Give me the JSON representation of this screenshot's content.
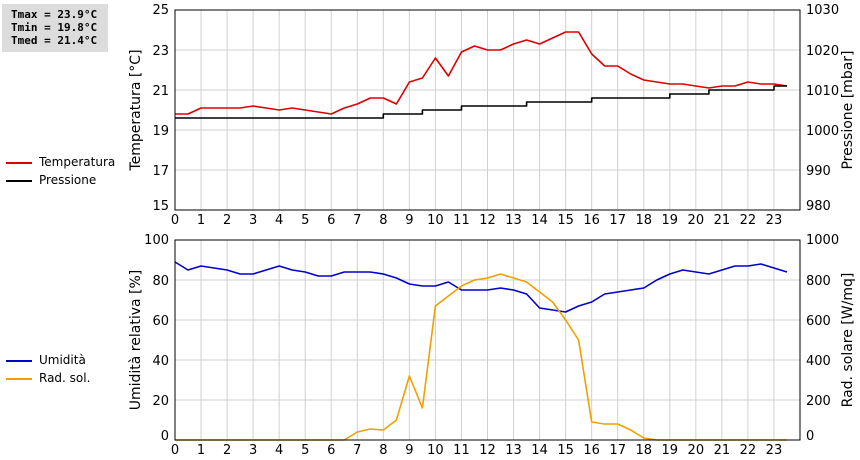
{
  "stats": {
    "tmax": "Tmax = 23.9°C",
    "tmin": "Tmin = 19.8°C",
    "tmed": "Tmed = 21.4°C"
  },
  "legend_top": [
    {
      "label": "Temperatura",
      "color": "#dd0000"
    },
    {
      "label": "Pressione",
      "color": "#000000"
    }
  ],
  "legend_bottom": [
    {
      "label": "Umidità",
      "color": "#0000cc"
    },
    {
      "label": "Rad. sol.",
      "color": "#f0a000"
    }
  ],
  "chart_data": [
    {
      "type": "line",
      "xlim": [
        0,
        24
      ],
      "xticks": [
        "0",
        "1",
        "2",
        "3",
        "4",
        "5",
        "6",
        "7",
        "8",
        "9",
        "10",
        "11",
        "12",
        "13",
        "14",
        "15",
        "16",
        "17",
        "18",
        "19",
        "20",
        "21",
        "22",
        "23"
      ],
      "ylabel": "Temperatura [°C]",
      "ylim": [
        15,
        25
      ],
      "yticks": [
        "15",
        "17",
        "19",
        "21",
        "23",
        "25"
      ],
      "y2label": "Pressione [mbar]",
      "y2lim": [
        980,
        1030
      ],
      "y2ticks": [
        "980",
        "990",
        "1000",
        "1010",
        "1020",
        "1030"
      ],
      "grid": true,
      "series": [
        {
          "name": "Temperatura",
          "axis": "left",
          "color": "#dd0000",
          "x": [
            0,
            0.5,
            1,
            1.5,
            2,
            2.5,
            3,
            3.5,
            4,
            4.5,
            5,
            5.5,
            6,
            6.5,
            7,
            7.5,
            8,
            8.5,
            9,
            9.5,
            10,
            10.5,
            11,
            11.5,
            12,
            12.5,
            13,
            13.5,
            14,
            14.5,
            15,
            15.5,
            16,
            16.5,
            17,
            17.5,
            18,
            18.5,
            19,
            19.5,
            20,
            20.5,
            21,
            21.5,
            22,
            22.5,
            23,
            23.5
          ],
          "values": [
            19.8,
            19.8,
            20.1,
            20.1,
            20.1,
            20.1,
            20.2,
            20.1,
            20.0,
            20.1,
            20.0,
            19.9,
            19.8,
            20.1,
            20.3,
            20.6,
            20.6,
            20.3,
            21.4,
            21.6,
            22.6,
            21.7,
            22.9,
            23.2,
            23.0,
            23.0,
            23.3,
            23.5,
            23.3,
            23.6,
            23.9,
            23.9,
            22.8,
            22.2,
            22.2,
            21.8,
            21.5,
            21.4,
            21.3,
            21.3,
            21.2,
            21.1,
            21.2,
            21.2,
            21.4,
            21.3,
            21.3,
            21.2
          ]
        },
        {
          "name": "Pressione",
          "axis": "right",
          "color": "#000000",
          "x": [
            0,
            0.5,
            1,
            1.5,
            2,
            2.5,
            3,
            3.5,
            4,
            4.5,
            5,
            5.5,
            6,
            6.5,
            7,
            7.5,
            8,
            8.5,
            9,
            9.5,
            10,
            10.5,
            11,
            11.5,
            12,
            12.5,
            13,
            13.5,
            14,
            14.5,
            15,
            15.5,
            16,
            16.5,
            17,
            17.5,
            18,
            18.5,
            19,
            19.5,
            20,
            20.5,
            21,
            21.5,
            22,
            22.5,
            23,
            23.5
          ],
          "values": [
            1003,
            1003,
            1003,
            1003,
            1003,
            1003,
            1003,
            1003,
            1003,
            1003,
            1003,
            1003,
            1003,
            1003,
            1003,
            1003,
            1004,
            1004,
            1004,
            1005,
            1005,
            1005,
            1006,
            1006,
            1006,
            1006,
            1006,
            1007,
            1007,
            1007,
            1007,
            1007,
            1008,
            1008,
            1008,
            1008,
            1008,
            1008,
            1009,
            1009,
            1009,
            1010,
            1010,
            1010,
            1010,
            1010,
            1011,
            1011
          ]
        }
      ]
    },
    {
      "type": "line",
      "xlim": [
        0,
        24
      ],
      "xticks": [
        "0",
        "1",
        "2",
        "3",
        "4",
        "5",
        "6",
        "7",
        "8",
        "9",
        "10",
        "11",
        "12",
        "13",
        "14",
        "15",
        "16",
        "17",
        "18",
        "19",
        "20",
        "21",
        "22",
        "23"
      ],
      "ylabel": "Umidità relativa [%]",
      "ylim": [
        0,
        100
      ],
      "yticks": [
        "0",
        "20",
        "40",
        "60",
        "80",
        "100"
      ],
      "y2label": "Rad. solare [W/mq]",
      "y2lim": [
        0,
        1000
      ],
      "y2ticks": [
        "0",
        "200",
        "400",
        "600",
        "800",
        "1000"
      ],
      "grid": true,
      "series": [
        {
          "name": "Umidità",
          "axis": "left",
          "color": "#0000cc",
          "x": [
            0,
            0.5,
            1,
            1.5,
            2,
            2.5,
            3,
            3.5,
            4,
            4.5,
            5,
            5.5,
            6,
            6.5,
            7,
            7.5,
            8,
            8.5,
            9,
            9.5,
            10,
            10.5,
            11,
            11.5,
            12,
            12.5,
            13,
            13.5,
            14,
            14.5,
            15,
            15.5,
            16,
            16.5,
            17,
            17.5,
            18,
            18.5,
            19,
            19.5,
            20,
            20.5,
            21,
            21.5,
            22,
            22.5,
            23,
            23.5
          ],
          "values": [
            89,
            85,
            87,
            86,
            85,
            83,
            83,
            85,
            87,
            85,
            84,
            82,
            82,
            84,
            84,
            84,
            83,
            81,
            78,
            77,
            77,
            79,
            75,
            75,
            75,
            76,
            75,
            73,
            66,
            65,
            64,
            67,
            69,
            73,
            74,
            75,
            76,
            80,
            83,
            85,
            84,
            83,
            85,
            87,
            87,
            88,
            86,
            84
          ]
        },
        {
          "name": "Rad. sol.",
          "axis": "right",
          "color": "#f0a000",
          "x": [
            0,
            0.5,
            1,
            1.5,
            2,
            2.5,
            3,
            3.5,
            4,
            4.5,
            5,
            5.5,
            6,
            6.5,
            7,
            7.5,
            8,
            8.5,
            9,
            9.5,
            10,
            10.5,
            11,
            11.5,
            12,
            12.5,
            13,
            13.5,
            14,
            14.5,
            15,
            15.5,
            16,
            16.5,
            17,
            17.5,
            18,
            18.5,
            19,
            19.5,
            20,
            20.5,
            21,
            21.5,
            22,
            22.5,
            23,
            23.5
          ],
          "values": [
            0,
            0,
            0,
            0,
            0,
            0,
            0,
            0,
            0,
            0,
            0,
            0,
            0,
            0,
            40,
            55,
            50,
            100,
            320,
            160,
            670,
            720,
            770,
            800,
            810,
            830,
            810,
            790,
            740,
            690,
            600,
            500,
            90,
            80,
            80,
            50,
            10,
            0,
            0,
            0,
            0,
            0,
            0,
            0,
            0,
            0,
            0,
            0
          ]
        }
      ]
    }
  ]
}
